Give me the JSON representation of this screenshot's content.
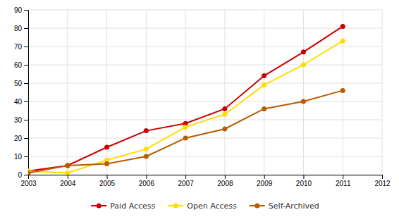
{
  "chart_data": {
    "type": "line",
    "x": [
      2003,
      2004,
      2005,
      2006,
      2007,
      2008,
      2009,
      2010,
      2011
    ],
    "series": [
      {
        "name": "Paid Access",
        "color": "#cc0000",
        "values": [
          2,
          5,
          15,
          24,
          28,
          36,
          54,
          67,
          81
        ]
      },
      {
        "name": "Open Access",
        "color": "#ffdd00",
        "values": [
          2,
          1,
          8,
          14,
          26,
          33,
          49,
          60,
          73
        ]
      },
      {
        "name": "Self-Archived",
        "color": "#b85c00",
        "values": [
          1,
          5,
          6,
          10,
          20,
          25,
          36,
          40,
          46
        ]
      }
    ],
    "marker": "circle",
    "xlim": [
      2003,
      2012
    ],
    "xticks": [
      2003,
      2004,
      2005,
      2006,
      2007,
      2008,
      2009,
      2010,
      2011,
      2012
    ],
    "ylim": [
      0,
      90
    ],
    "yticks": [
      0,
      10,
      20,
      30,
      40,
      50,
      60,
      70,
      80,
      90
    ],
    "grid": true,
    "legend": "bottom"
  }
}
